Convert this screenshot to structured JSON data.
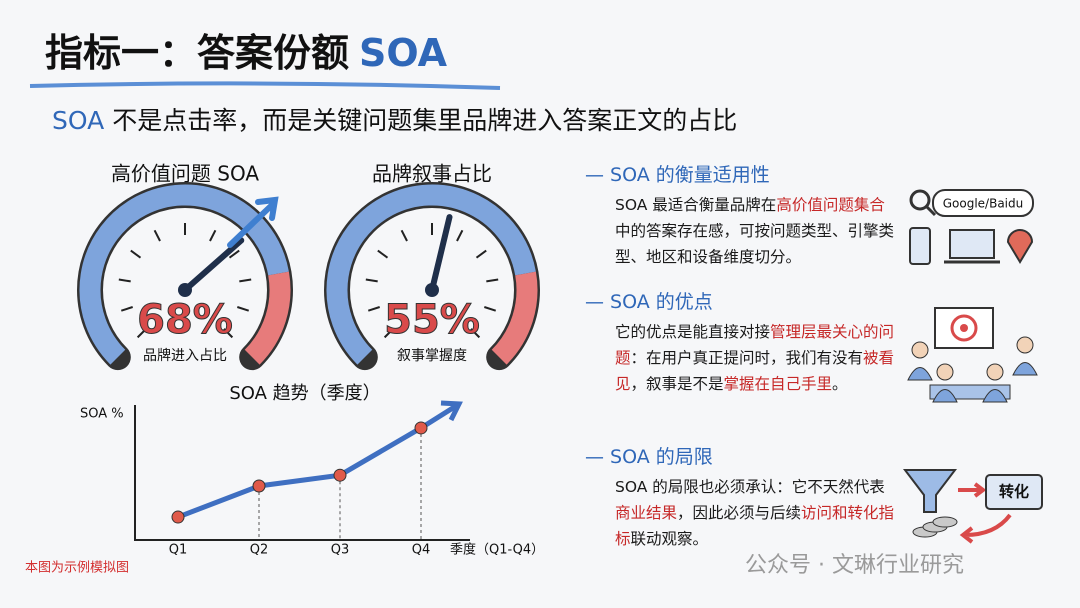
{
  "header": {
    "title_main": "指标一：答案份额",
    "title_accent": "SOA",
    "subtitle_accent": "SOA",
    "subtitle_main": "不是点击率，而是关键问题集里品牌进入答案正文的占比"
  },
  "chart_data": [
    {
      "type": "gauge",
      "title": "高价值问题 SOA",
      "value": 68,
      "value_label": "68%",
      "caption": "品牌进入占比",
      "ylim": [
        0,
        100
      ]
    },
    {
      "type": "gauge",
      "title": "品牌叙事占比",
      "value": 55,
      "value_label": "55%",
      "caption": "叙事掌握度",
      "ylim": [
        0,
        100
      ]
    },
    {
      "type": "line",
      "title": "SOA 趋势（季度）",
      "y_label": "SOA %",
      "x_label": "季度（Q1-Q4）",
      "categories": [
        "Q1",
        "Q2",
        "Q3",
        "Q4"
      ],
      "values": [
        17,
        40,
        48,
        83
      ],
      "color": "#3f6fc1",
      "ylim": [
        0,
        100
      ]
    }
  ],
  "sections": [
    {
      "heading": "— SOA 的衡量适用性",
      "body": [
        {
          "text": "SOA 最适合衡量品牌在"
        },
        {
          "text": "高价值问题集合",
          "color": "#c62828"
        },
        {
          "text": "中的答案存在感，可按问题类型、引擎类型、地区和设备维度切分。"
        }
      ]
    },
    {
      "heading": "— SOA 的优点",
      "body": [
        {
          "text": "它的优点是能直接对接"
        },
        {
          "text": "管理层最关心的问题",
          "color": "#c62828"
        },
        {
          "text": "：在用户真正提问时，我们有没有"
        },
        {
          "text": "被看见",
          "color": "#c62828"
        },
        {
          "text": "，叙事是不是"
        },
        {
          "text": "掌握在自己手里",
          "color": "#c62828"
        },
        {
          "text": "。"
        }
      ]
    },
    {
      "heading": "— SOA 的局限",
      "body": [
        {
          "text": "SOA 的局限也必须承认：它不天然代表"
        },
        {
          "text": "商业结果",
          "color": "#c62828"
        },
        {
          "text": "，因此必须与后续"
        },
        {
          "text": "访问和转化指标",
          "color": "#c62828"
        },
        {
          "text": "联动观察。"
        }
      ]
    }
  ],
  "icons": {
    "search": "Google/Baidu",
    "convert": "转化"
  },
  "note": "本图为示例模拟图",
  "watermark": "公众号 · 文琳行业研究"
}
